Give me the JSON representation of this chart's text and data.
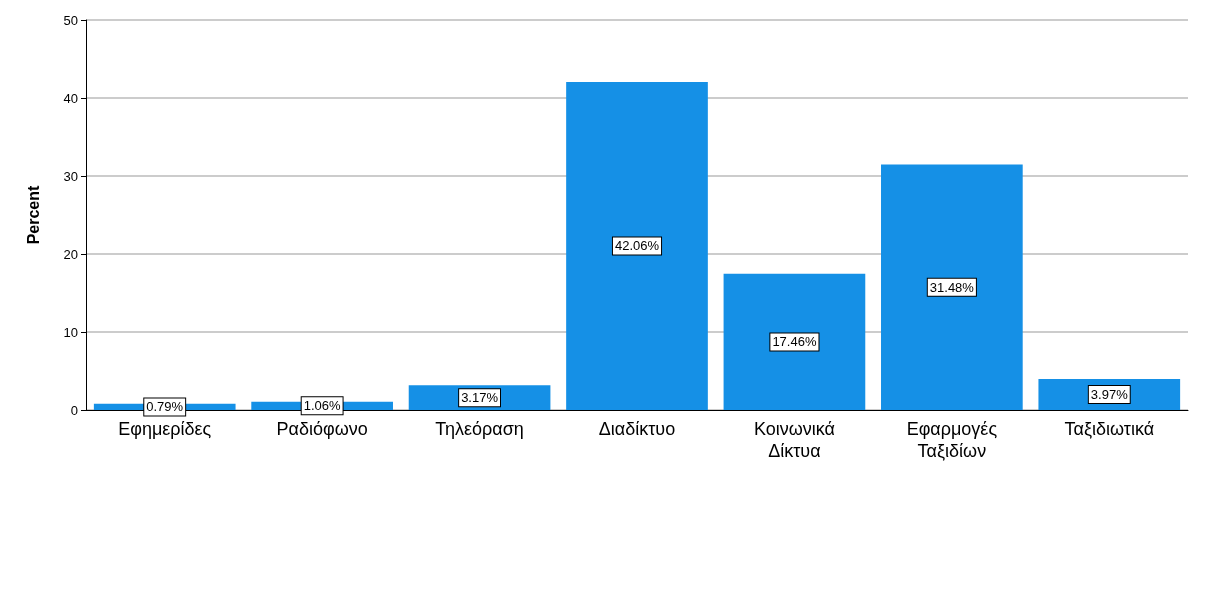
{
  "chart_data": {
    "type": "bar",
    "ylabel": "Percent",
    "categories": [
      "Εφημερίδες",
      "Ραδιόφωνο",
      "Τηλεόραση",
      "Διαδίκτυο",
      "Κοινωνικά Δίκτυα",
      "Εφαρμογές Ταξιδίων",
      "Ταξιδιωτικά"
    ],
    "values": [
      0.79,
      1.06,
      3.17,
      42.06,
      17.46,
      31.48,
      3.97
    ],
    "value_labels": [
      "0.79%",
      "1.06%",
      "3.17%",
      "42.06%",
      "17.46%",
      "31.48%",
      "3.97%"
    ],
    "color": "#1590e6",
    "ylim": [
      0,
      50
    ],
    "yticks": [
      0,
      10,
      20,
      30,
      40,
      50
    ],
    "grid": "y"
  }
}
